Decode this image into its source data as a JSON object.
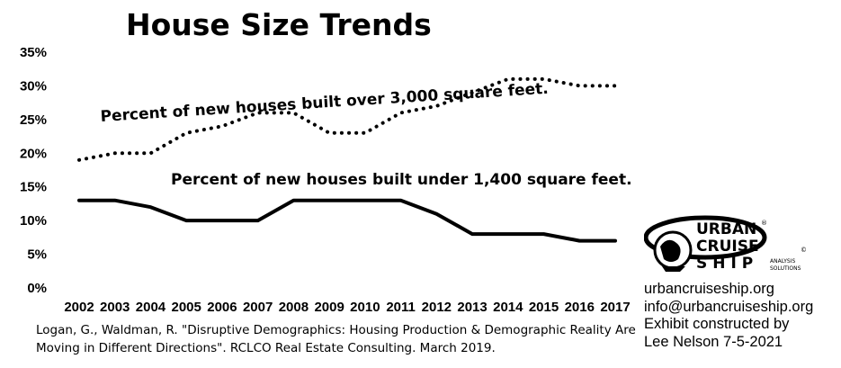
{
  "chart_data": {
    "type": "line",
    "title": "House Size Trends",
    "xlabel": "",
    "ylabel": "",
    "x": [
      2002,
      2003,
      2004,
      2005,
      2006,
      2007,
      2008,
      2009,
      2010,
      2011,
      2012,
      2013,
      2014,
      2015,
      2016,
      2017
    ],
    "ylim": [
      0,
      35
    ],
    "y_ticks": [
      "0%",
      "5%",
      "10%",
      "15%",
      "20%",
      "25%",
      "30%",
      "35%"
    ],
    "grid": false,
    "series": [
      {
        "name": "Percent of new houses built over 3,000 square feet.",
        "style": "dotted",
        "color": "#000000",
        "values": [
          19,
          20,
          20,
          23,
          24,
          26,
          26,
          23,
          23,
          26,
          27,
          29,
          31,
          31,
          30,
          30
        ]
      },
      {
        "name": "Percent of new houses built under 1,400 square feet.",
        "style": "solid",
        "color": "#000000",
        "values": [
          13,
          13,
          12,
          10,
          10,
          10,
          13,
          13,
          13,
          13,
          11,
          8,
          8,
          8,
          7,
          7
        ]
      }
    ]
  },
  "source": {
    "line1": "Logan, G., Waldman, R. \"Disruptive Demographics: Housing Production & Demographic Reality Are",
    "line2": "Moving in Different Directions\". RCLCO Real Estate Consulting. March 2019."
  },
  "logo": {
    "word1": "URBAN",
    "word2": "CRUISE",
    "word3": "SHIP",
    "tag1": "ANALYSIS",
    "tag2": "SOLUTIONS",
    "mark": "®",
    "copyright": "©"
  },
  "contact": {
    "site": "urbancruiseship.org",
    "email": "info@urbancruiseship.org",
    "credit1": "Exhibit constructed by",
    "credit2": "Lee Nelson 7-5-2021"
  }
}
